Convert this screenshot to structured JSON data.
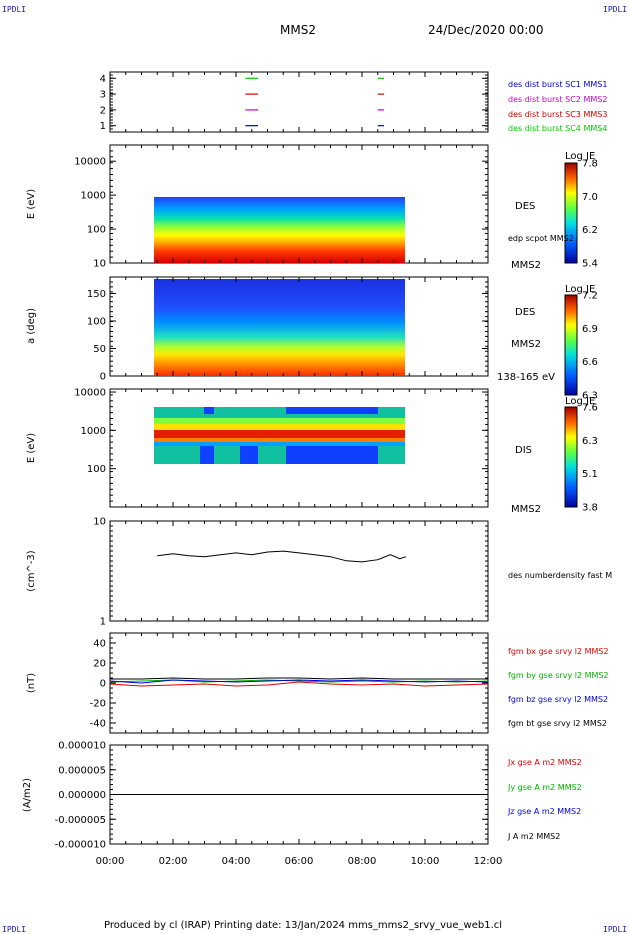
{
  "corners": {
    "tl": "IPDLI",
    "tr": "IPDLI",
    "bl": "IPDLI",
    "br": "IPDLI"
  },
  "header": {
    "spacecraft": "MMS2",
    "date": "24/Dec/2020 00:00"
  },
  "footer": "Produced by cl (IRAP)   Printing date: 13/Jan/2024   mms_mms2_srvy_vue_web1.cl",
  "colors": {
    "sc1": "#0000cc",
    "sc2": "#cc00cc",
    "sc3": "#cc0000",
    "sc4": "#00cc00",
    "bx": "#e00000",
    "by": "#00b000",
    "bz": "#0000dd",
    "bt": "#000000"
  },
  "chart_data": [
    {
      "type": "scatter",
      "id": "burst",
      "yticks": [
        "1",
        "2",
        "3",
        "4"
      ],
      "ylim": [
        0.6,
        4.4
      ],
      "legend": [
        "des dist burst SC1 MMS1",
        "des dist burst SC2 MMS2",
        "des dist burst SC3 MMS3",
        "des dist burst SC4 MMS4"
      ],
      "series": [
        {
          "y": 4,
          "color": "#00cc00",
          "segments": [
            [
              4.3,
              4.7
            ],
            [
              8.5,
              8.7
            ]
          ]
        },
        {
          "y": 3,
          "color": "#cc0000",
          "segments": [
            [
              4.3,
              4.7
            ],
            [
              8.5,
              8.7
            ]
          ]
        },
        {
          "y": 2,
          "color": "#cc00cc",
          "segments": [
            [
              4.3,
              4.7
            ],
            [
              8.5,
              8.7
            ]
          ]
        },
        {
          "y": 1,
          "color": "#0000cc",
          "segments": [
            [
              4.3,
              4.7
            ],
            [
              8.5,
              8.7
            ]
          ]
        }
      ]
    },
    {
      "type": "heatmap",
      "id": "des-energy",
      "ylabel": "E (eV)",
      "yscale": "log",
      "ylim": [
        10,
        30000
      ],
      "yticks": [
        "10",
        "100",
        "1000",
        "10000"
      ],
      "data_range": [
        1.4,
        9.4
      ],
      "labels": [
        "DES",
        "edp scpot MMS2",
        "MMS2"
      ],
      "colorbar": {
        "title": "Log JE",
        "ticks": [
          "7.8",
          "7.0",
          "6.2",
          "5.4"
        ]
      }
    },
    {
      "type": "heatmap",
      "id": "des-pitch",
      "ylabel": "a (deg)",
      "ylim": [
        0,
        180
      ],
      "yticks": [
        "0",
        "50",
        "100",
        "150"
      ],
      "data_range": [
        1.4,
        9.4
      ],
      "labels": [
        "DES",
        "MMS2",
        "138-165 eV"
      ],
      "colorbar": {
        "title": "Log JE",
        "ticks": [
          "7.2",
          "6.9",
          "6.6",
          "6.3"
        ]
      }
    },
    {
      "type": "heatmap",
      "id": "dis-energy",
      "ylabel": "E (eV)",
      "yscale": "log",
      "ylim": [
        10,
        12000
      ],
      "yticks": [
        "100",
        "1000",
        "10000"
      ],
      "data_range": [
        1.4,
        9.4
      ],
      "labels": [
        "DIS",
        "MMS2"
      ],
      "colorbar": {
        "title": "Log JE",
        "ticks": [
          "7.6",
          "6.3",
          "5.1",
          "3.8"
        ]
      }
    },
    {
      "type": "line",
      "id": "density",
      "ylabel": "(cm^-3)",
      "yscale": "log",
      "ylim": [
        1,
        10
      ],
      "yticks": [
        "1",
        "10"
      ],
      "legend": [
        "des numberdensity fast M"
      ],
      "series": [
        {
          "x": [
            1.5,
            2.0,
            2.5,
            3.0,
            3.5,
            4.0,
            4.5,
            5.0,
            5.5,
            6.0,
            6.5,
            7.0,
            7.5,
            8.0,
            8.5,
            8.9,
            9.2,
            9.4
          ],
          "y": [
            4.5,
            4.7,
            4.5,
            4.4,
            4.6,
            4.8,
            4.6,
            4.9,
            5.0,
            4.8,
            4.6,
            4.4,
            4.0,
            3.9,
            4.1,
            4.6,
            4.2,
            4.4
          ]
        }
      ]
    },
    {
      "type": "line",
      "id": "fgm",
      "ylabel": "(nT)",
      "ylim": [
        -50,
        50
      ],
      "yticks": [
        "40",
        "20",
        "0",
        "-20",
        "-40"
      ],
      "legend": [
        "fgm bx gse srvy l2 MMS2",
        "fgm by gse srvy l2 MMS2",
        "fgm bz gse srvy l2 MMS2",
        "fgm bt gse srvy l2 MMS2"
      ],
      "series": [
        {
          "name": "fgm bx gse srvy l2 MMS2",
          "x": [
            0,
            1,
            2,
            3,
            4,
            5,
            6,
            7,
            8,
            9,
            10,
            11,
            12
          ],
          "y": [
            -1,
            -3,
            -2,
            -1,
            -3,
            -2,
            1,
            -1,
            -2,
            -1,
            -3,
            -2,
            -1
          ]
        },
        {
          "name": "fgm by gse srvy l2 MMS2",
          "x": [
            0,
            1,
            2,
            3,
            4,
            5,
            6,
            7,
            8,
            9,
            10,
            11,
            12
          ],
          "y": [
            1,
            2,
            3,
            1,
            2,
            3,
            2,
            1,
            2,
            1,
            2,
            1,
            2
          ]
        },
        {
          "name": "fgm bz gse srvy l2 MMS2",
          "x": [
            0,
            1,
            2,
            3,
            4,
            5,
            6,
            7,
            8,
            9,
            10,
            11,
            12
          ],
          "y": [
            2,
            0,
            3,
            2,
            1,
            2,
            3,
            2,
            3,
            2,
            1,
            2,
            1
          ]
        },
        {
          "name": "fgm bt gse srvy l2 MMS2",
          "x": [
            0,
            1,
            2,
            3,
            4,
            5,
            6,
            7,
            8,
            9,
            10,
            11,
            12
          ],
          "y": [
            4,
            4,
            5,
            4,
            4,
            5,
            5,
            4,
            5,
            4,
            4,
            4,
            4
          ]
        }
      ]
    },
    {
      "type": "line",
      "id": "current",
      "ylabel": "(A/m2)",
      "ylim": [
        -1e-05,
        1e-05
      ],
      "yticks": [
        "0.000010",
        "0.000005",
        "0.000000",
        "-0.000005",
        "-0.000010"
      ],
      "legend": [
        "Jx gse A m2 MMS2",
        "Jy gse A m2 MMS2",
        "Jz gse A m2 MMS2",
        "J A m2 MMS2"
      ],
      "series": [
        {
          "name": "J A m2 MMS2",
          "x": [
            0,
            12
          ],
          "y": [
            0,
            0
          ]
        }
      ]
    }
  ],
  "xaxis": {
    "ticks": [
      "00:00",
      "02:00",
      "04:00",
      "06:00",
      "08:00",
      "10:00",
      "12:00"
    ],
    "xlim": [
      0,
      12
    ]
  }
}
